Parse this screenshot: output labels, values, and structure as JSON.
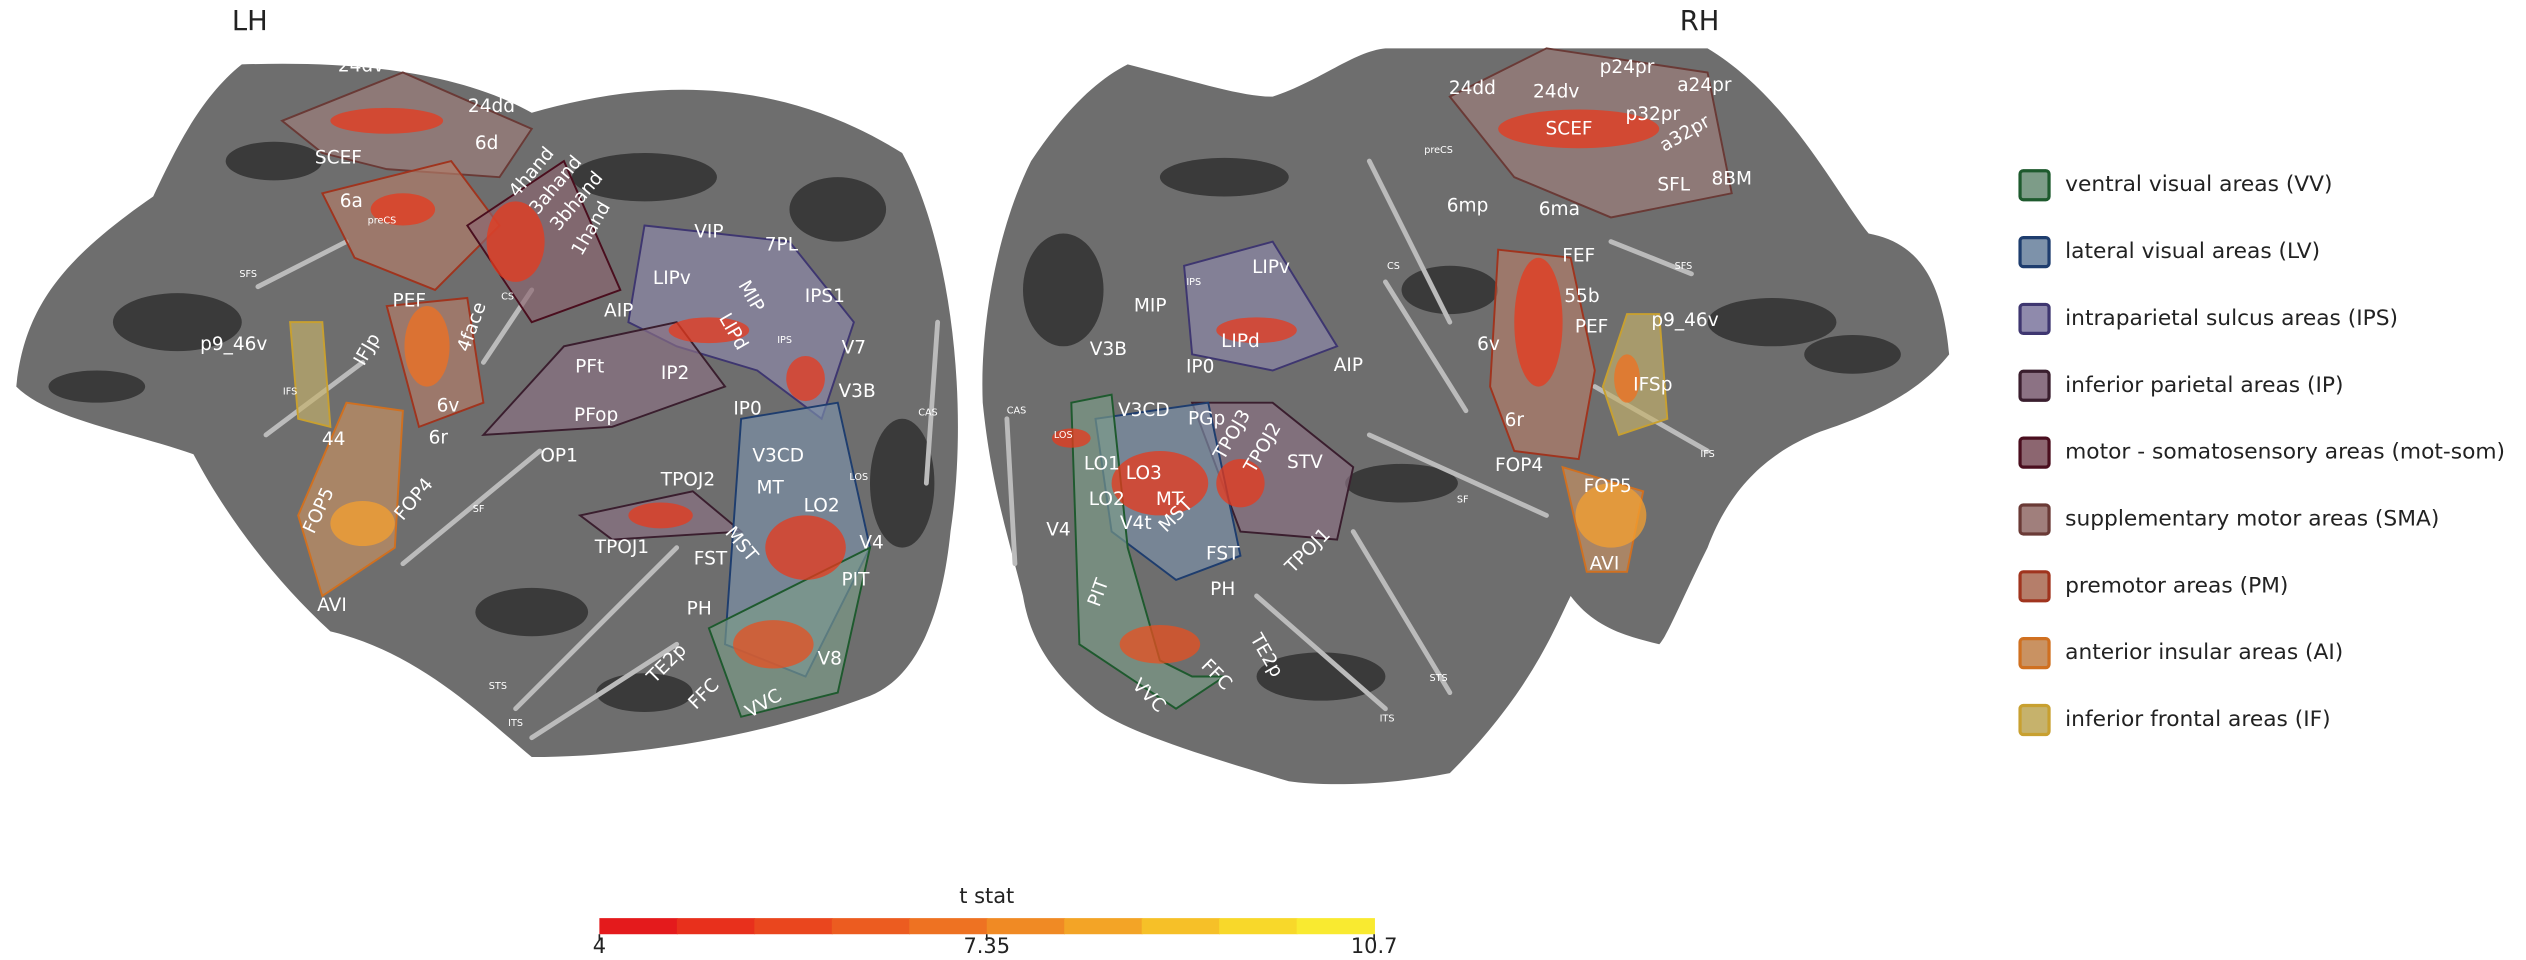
{
  "hemispheres": {
    "lh": {
      "title": "LH",
      "labels": [
        "24dv",
        "24dd",
        "SCEF",
        "6d",
        "6a",
        "4hand",
        "3ahand",
        "3bhand",
        "1hand",
        "preCS",
        "SFS",
        "CS",
        "4face",
        "PEF",
        "p9_46v",
        "IFJp",
        "6v",
        "6r",
        "IFS",
        "44",
        "FOP5",
        "FOP4",
        "SF",
        "AVI",
        "VIP",
        "7PL",
        "LIPv",
        "MIP",
        "IPS1",
        "AIP",
        "LIPd",
        "IPS",
        "V7",
        "PFt",
        "IP2",
        "V3B",
        "PFop",
        "IP0",
        "OP1",
        "V3CD",
        "CAS",
        "TPOJ2",
        "MT",
        "LOS",
        "LO2",
        "TPOJ1",
        "FST",
        "MST",
        "V4",
        "PIT",
        "PH",
        "TE2p",
        "V8",
        "FFC",
        "VVC",
        "STS",
        "ITS"
      ]
    },
    "rh": {
      "title": "RH",
      "labels": [
        "24dd",
        "24dv",
        "p24pr",
        "a24pr",
        "p32pr",
        "a32pr",
        "SCEF",
        "preCS",
        "SFL",
        "8BM",
        "6mp",
        "6ma",
        "CS",
        "SFS",
        "FEF",
        "55b",
        "6v",
        "PEF",
        "p9_46v",
        "IFSp",
        "IFS",
        "6r",
        "FOP4",
        "FOP5",
        "SF",
        "AVI",
        "STS",
        "ITS",
        "LIPv",
        "MIP",
        "IPS",
        "LIPd",
        "AIP",
        "V3B",
        "IP0",
        "CAS",
        "LOS",
        "V3CD",
        "PGp",
        "TPOJ3",
        "TPOJ2",
        "STV",
        "LO1",
        "LO3",
        "LO2",
        "MT",
        "V4t",
        "MST",
        "V4",
        "FST",
        "TPOJ1",
        "PIT",
        "PH",
        "TE2p",
        "VVC",
        "FFC"
      ]
    }
  },
  "legend": [
    {
      "label": "ventral visual areas (VV)",
      "color": "#7d9c88"
    },
    {
      "label": "lateral visual areas (LV)",
      "color": "#7d92aa"
    },
    {
      "label": "intraparietal sulcus areas (IPS)",
      "color": "#8f8aac"
    },
    {
      "label": "inferior parietal areas (IP)",
      "color": "#8c7284"
    },
    {
      "label": "motor - somatosensory areas (mot-som)",
      "color": "#8c6670"
    },
    {
      "label": "supplementary motor areas (SMA)",
      "color": "#a07f7c"
    },
    {
      "label": "premotor areas (PM)",
      "color": "#b57e6a"
    },
    {
      "label": "anterior insular areas (AI)",
      "color": "#c99262"
    },
    {
      "label": "inferior frontal areas (IF)",
      "color": "#c6b26c"
    }
  ],
  "colorbar": {
    "label": "t stat",
    "range": [
      4,
      10.7
    ],
    "ticks": [
      4,
      7.35,
      10.7
    ]
  }
}
